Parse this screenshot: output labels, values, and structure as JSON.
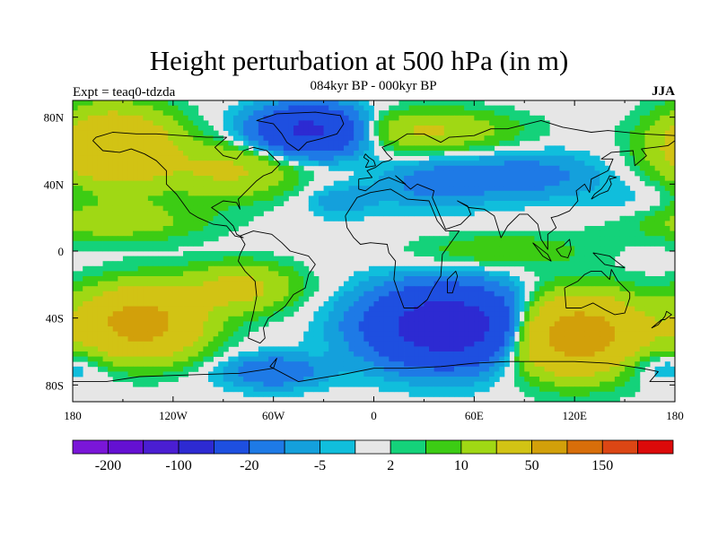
{
  "header": {
    "title": "Height perturbation at 500 hPa (in m)",
    "subtitle": "084kyr BP - 000kyr BP",
    "experiment": "Expt = teaq0-tdzda",
    "season": "JJA"
  },
  "map": {
    "projection": "cylindrical-equidistant",
    "lon_range": [
      -180,
      180
    ],
    "lat_range": [
      -90,
      90
    ],
    "background_color": "#e6e6e6",
    "coastline_color": "#000000"
  },
  "axes": {
    "x_ticks": [
      {
        "value": -180,
        "label": "180"
      },
      {
        "value": -120,
        "label": "120W"
      },
      {
        "value": -60,
        "label": "60W"
      },
      {
        "value": 0,
        "label": "0"
      },
      {
        "value": 60,
        "label": "60E"
      },
      {
        "value": 120,
        "label": "120E"
      },
      {
        "value": 180,
        "label": "180"
      }
    ],
    "y_ticks": [
      {
        "value": 80,
        "label": "80N"
      },
      {
        "value": 40,
        "label": "40N"
      },
      {
        "value": 0,
        "label": "0"
      },
      {
        "value": -40,
        "label": "40S"
      },
      {
        "value": -80,
        "label": "80S"
      }
    ]
  },
  "colorbar": {
    "colors": [
      "#7a16d8",
      "#6410d2",
      "#4a1ed2",
      "#2d2ad2",
      "#1e4fe0",
      "#1e7ae6",
      "#14a0dc",
      "#10bedc",
      "#e6e6e6",
      "#14d27a",
      "#3ccc14",
      "#a0d814",
      "#d2c314",
      "#d2a00a",
      "#d86e0a",
      "#dc4614",
      "#dc0a0a"
    ],
    "labels": [
      {
        "boundary": 1,
        "text": "-200"
      },
      {
        "boundary": 3,
        "text": "-100"
      },
      {
        "boundary": 5,
        "text": "-20"
      },
      {
        "boundary": 7,
        "text": "-5"
      },
      {
        "boundary": 9,
        "text": "2"
      },
      {
        "boundary": 11,
        "text": "10"
      },
      {
        "boundary": 13,
        "text": "50"
      },
      {
        "boundary": 15,
        "text": "150"
      }
    ]
  },
  "field_anomalies": [
    {
      "name": "north-atlantic-greenland-low",
      "lon": -38,
      "lat": 72,
      "value": -60,
      "rlon": 32,
      "rlat": 14
    },
    {
      "name": "north-pacific-high",
      "lon": -155,
      "lat": 62,
      "value": 48,
      "rlon": 35,
      "rlat": 22
    },
    {
      "name": "north-america-high",
      "lon": -85,
      "lat": 48,
      "value": 22,
      "rlon": 38,
      "rlat": 16
    },
    {
      "name": "east-pacific-high",
      "lon": -160,
      "lat": 18,
      "value": 16,
      "rlon": 55,
      "rlat": 12
    },
    {
      "name": "atlantic-low",
      "lon": -20,
      "lat": 30,
      "value": -8,
      "rlon": 22,
      "rlat": 10
    },
    {
      "name": "europe-high",
      "lon": 30,
      "lat": 72,
      "value": 22,
      "rlon": 50,
      "rlat": 12
    },
    {
      "name": "north-africa-low",
      "lon": 35,
      "lat": 40,
      "value": -12,
      "rlon": 32,
      "rlat": 14
    },
    {
      "name": "east-asia-low",
      "lon": 90,
      "lat": 45,
      "value": -14,
      "rlon": 45,
      "rlat": 14
    },
    {
      "name": "tropical-indian-high",
      "lon": 75,
      "lat": 0,
      "value": 10,
      "rlon": 50,
      "rlat": 10
    },
    {
      "name": "south-pacific-west-high",
      "lon": -140,
      "lat": -43,
      "value": 65,
      "rlon": 35,
      "rlat": 20
    },
    {
      "name": "south-america-high",
      "lon": -80,
      "lat": -22,
      "value": 25,
      "rlon": 32,
      "rlat": 14
    },
    {
      "name": "south-atlantic-indian-low",
      "lon": 45,
      "lat": -45,
      "value": -80,
      "rlon": 45,
      "rlat": 22
    },
    {
      "name": "south-indian-high",
      "lon": 120,
      "lat": -50,
      "value": 75,
      "rlon": 38,
      "rlat": 22
    },
    {
      "name": "drake-passage-low",
      "lon": -60,
      "lat": -72,
      "value": -18,
      "rlon": 30,
      "rlat": 10
    },
    {
      "name": "ross-sea-low",
      "lon": 170,
      "lat": -68,
      "value": -10,
      "rlon": 30,
      "rlat": 10
    },
    {
      "name": "west-pacific-low",
      "lon": 160,
      "lat": 25,
      "value": -6,
      "rlon": 30,
      "rlat": 14
    }
  ],
  "coastlines": [
    {
      "name": "north-america",
      "points": [
        [
          -168,
          66
        ],
        [
          -162,
          60
        ],
        [
          -152,
          59
        ],
        [
          -145,
          61
        ],
        [
          -137,
          58
        ],
        [
          -130,
          54
        ],
        [
          -124,
          48
        ],
        [
          -124,
          40
        ],
        [
          -118,
          34
        ],
        [
          -110,
          23
        ],
        [
          -105,
          20
        ],
        [
          -96,
          16
        ],
        [
          -88,
          15
        ],
        [
          -83,
          9
        ],
        [
          -78,
          8
        ],
        [
          -82,
          10
        ],
        [
          -84,
          15
        ],
        [
          -90,
          21
        ],
        [
          -97,
          26
        ],
        [
          -90,
          30
        ],
        [
          -82,
          29
        ],
        [
          -80,
          25
        ],
        [
          -81,
          31
        ],
        [
          -76,
          36
        ],
        [
          -70,
          42
        ],
        [
          -66,
          45
        ],
        [
          -61,
          47
        ],
        [
          -56,
          52
        ],
        [
          -60,
          56
        ],
        [
          -64,
          60
        ],
        [
          -72,
          62
        ],
        [
          -78,
          60
        ],
        [
          -82,
          55
        ],
        [
          -90,
          57
        ],
        [
          -95,
          62
        ],
        [
          -88,
          68
        ],
        [
          -100,
          68
        ],
        [
          -115,
          69
        ],
        [
          -130,
          70
        ],
        [
          -142,
          70
        ],
        [
          -156,
          71
        ],
        [
          -166,
          68
        ],
        [
          -168,
          66
        ]
      ]
    },
    {
      "name": "greenland",
      "points": [
        [
          -45,
          60
        ],
        [
          -52,
          65
        ],
        [
          -55,
          70
        ],
        [
          -60,
          76
        ],
        [
          -70,
          78
        ],
        [
          -58,
          82
        ],
        [
          -35,
          83
        ],
        [
          -20,
          81
        ],
        [
          -18,
          76
        ],
        [
          -22,
          70
        ],
        [
          -32,
          67
        ],
        [
          -40,
          65
        ],
        [
          -45,
          60
        ]
      ]
    },
    {
      "name": "south-america",
      "points": [
        [
          -80,
          9
        ],
        [
          -77,
          4
        ],
        [
          -80,
          -2
        ],
        [
          -81,
          -6
        ],
        [
          -77,
          -12
        ],
        [
          -71,
          -18
        ],
        [
          -70,
          -27
        ],
        [
          -72,
          -37
        ],
        [
          -74,
          -45
        ],
        [
          -75,
          -52
        ],
        [
          -68,
          -55
        ],
        [
          -65,
          -52
        ],
        [
          -66,
          -46
        ],
        [
          -63,
          -40
        ],
        [
          -57,
          -36
        ],
        [
          -53,
          -33
        ],
        [
          -48,
          -26
        ],
        [
          -41,
          -22
        ],
        [
          -39,
          -14
        ],
        [
          -35,
          -8
        ],
        [
          -39,
          -3
        ],
        [
          -50,
          0
        ],
        [
          -55,
          5
        ],
        [
          -61,
          10
        ],
        [
          -72,
          12
        ],
        [
          -80,
          9
        ]
      ]
    },
    {
      "name": "eurasia",
      "points": [
        [
          -9,
          43
        ],
        [
          -9,
          37
        ],
        [
          -5,
          36
        ],
        [
          3,
          42
        ],
        [
          9,
          44
        ],
        [
          16,
          41
        ],
        [
          19,
          40
        ],
        [
          13,
          45
        ],
        [
          22,
          37
        ],
        [
          26,
          40
        ],
        [
          36,
          36
        ],
        [
          35,
          32
        ],
        [
          40,
          20
        ],
        [
          43,
          13
        ],
        [
          52,
          16
        ],
        [
          58,
          22
        ],
        [
          56,
          27
        ],
        [
          50,
          30
        ],
        [
          57,
          26
        ],
        [
          66,
          25
        ],
        [
          72,
          21
        ],
        [
          76,
          8
        ],
        [
          80,
          15
        ],
        [
          87,
          22
        ],
        [
          92,
          22
        ],
        [
          98,
          16
        ],
        [
          100,
          7
        ],
        [
          104,
          1
        ],
        [
          104,
          10
        ],
        [
          109,
          14
        ],
        [
          106,
          20
        ],
        [
          110,
          21
        ],
        [
          117,
          24
        ],
        [
          122,
          30
        ],
        [
          121,
          36
        ],
        [
          126,
          40
        ],
        [
          129,
          35
        ],
        [
          130,
          43
        ],
        [
          140,
          48
        ],
        [
          143,
          55
        ],
        [
          136,
          55
        ],
        [
          142,
          59
        ],
        [
          155,
          60
        ],
        [
          156,
          51
        ],
        [
          163,
          57
        ],
        [
          160,
          61
        ],
        [
          176,
          63
        ],
        [
          180,
          66
        ],
        [
          180,
          69
        ],
        [
          160,
          70
        ],
        [
          140,
          72
        ],
        [
          130,
          71
        ],
        [
          113,
          74
        ],
        [
          100,
          78
        ],
        [
          80,
          73
        ],
        [
          70,
          73
        ],
        [
          60,
          69
        ],
        [
          45,
          68
        ],
        [
          40,
          65
        ],
        [
          30,
          70
        ],
        [
          20,
          70
        ],
        [
          12,
          65
        ],
        [
          5,
          62
        ],
        [
          8,
          58
        ],
        [
          11,
          55
        ],
        [
          9,
          54
        ],
        [
          5,
          53
        ],
        [
          1,
          50
        ],
        [
          -4,
          48
        ],
        [
          -1,
          44
        ],
        [
          -9,
          43
        ]
      ]
    },
    {
      "name": "africa",
      "points": [
        [
          -17,
          21
        ],
        [
          -16,
          14
        ],
        [
          -12,
          8
        ],
        [
          -8,
          4
        ],
        [
          -2,
          5
        ],
        [
          8,
          4
        ],
        [
          9,
          -1
        ],
        [
          13,
          -6
        ],
        [
          12,
          -17
        ],
        [
          15,
          -26
        ],
        [
          18,
          -34
        ],
        [
          26,
          -34
        ],
        [
          32,
          -29
        ],
        [
          35,
          -23
        ],
        [
          40,
          -15
        ],
        [
          41,
          -2
        ],
        [
          51,
          12
        ],
        [
          43,
          12
        ],
        [
          38,
          18
        ],
        [
          33,
          30
        ],
        [
          20,
          31
        ],
        [
          10,
          37
        ],
        [
          -2,
          35
        ],
        [
          -10,
          32
        ],
        [
          -17,
          21
        ]
      ]
    },
    {
      "name": "australia",
      "points": [
        [
          114,
          -22
        ],
        [
          115,
          -34
        ],
        [
          124,
          -34
        ],
        [
          131,
          -31
        ],
        [
          138,
          -35
        ],
        [
          144,
          -38
        ],
        [
          150,
          -37
        ],
        [
          153,
          -28
        ],
        [
          153,
          -25
        ],
        [
          146,
          -18
        ],
        [
          142,
          -11
        ],
        [
          141,
          -17
        ],
        [
          136,
          -12
        ],
        [
          130,
          -12
        ],
        [
          126,
          -14
        ],
        [
          122,
          -18
        ],
        [
          114,
          -22
        ]
      ]
    },
    {
      "name": "antarctica",
      "points": [
        [
          -180,
          -78
        ],
        [
          -160,
          -78
        ],
        [
          -140,
          -75
        ],
        [
          -110,
          -74
        ],
        [
          -80,
          -73
        ],
        [
          -60,
          -70
        ],
        [
          -58,
          -64
        ],
        [
          -62,
          -69
        ],
        [
          -45,
          -78
        ],
        [
          -20,
          -74
        ],
        [
          0,
          -70
        ],
        [
          20,
          -70
        ],
        [
          40,
          -69
        ],
        [
          60,
          -67
        ],
        [
          80,
          -66
        ],
        [
          100,
          -66
        ],
        [
          120,
          -66
        ],
        [
          140,
          -67
        ],
        [
          160,
          -70
        ],
        [
          170,
          -72
        ],
        [
          165,
          -78
        ],
        [
          180,
          -78
        ]
      ]
    },
    {
      "name": "britain",
      "points": [
        [
          -5,
          50
        ],
        [
          1,
          51
        ],
        [
          0,
          54
        ],
        [
          -3,
          56
        ],
        [
          -5,
          58
        ],
        [
          -6,
          56
        ],
        [
          -3,
          54
        ],
        [
          -5,
          50
        ]
      ]
    },
    {
      "name": "madagascar",
      "points": [
        [
          44,
          -25
        ],
        [
          47,
          -25
        ],
        [
          50,
          -15
        ],
        [
          49,
          -12
        ],
        [
          44,
          -17
        ],
        [
          44,
          -25
        ]
      ]
    },
    {
      "name": "japan",
      "points": [
        [
          130,
          31
        ],
        [
          135,
          34
        ],
        [
          140,
          36
        ],
        [
          142,
          40
        ],
        [
          141,
          43
        ],
        [
          145,
          44
        ],
        [
          141,
          45
        ],
        [
          139,
          41
        ],
        [
          136,
          37
        ],
        [
          132,
          34
        ],
        [
          130,
          31
        ]
      ]
    },
    {
      "name": "new-zealand",
      "points": [
        [
          166,
          -46
        ],
        [
          172,
          -41
        ],
        [
          174,
          -41
        ],
        [
          178,
          -38
        ],
        [
          175,
          -36
        ],
        [
          174,
          -39
        ],
        [
          170,
          -44
        ],
        [
          166,
          -46
        ]
      ]
    },
    {
      "name": "borneo",
      "points": [
        [
          109,
          1
        ],
        [
          112,
          -3
        ],
        [
          116,
          -4
        ],
        [
          118,
          1
        ],
        [
          117,
          7
        ],
        [
          113,
          3
        ],
        [
          109,
          1
        ]
      ]
    },
    {
      "name": "sumatra",
      "points": [
        [
          95,
          5
        ],
        [
          104,
          -2
        ],
        [
          106,
          -6
        ],
        [
          101,
          -3
        ],
        [
          95,
          5
        ]
      ]
    },
    {
      "name": "new-guinea",
      "points": [
        [
          131,
          -1
        ],
        [
          141,
          -3
        ],
        [
          150,
          -10
        ],
        [
          143,
          -9
        ],
        [
          138,
          -8
        ],
        [
          131,
          -1
        ]
      ]
    }
  ]
}
